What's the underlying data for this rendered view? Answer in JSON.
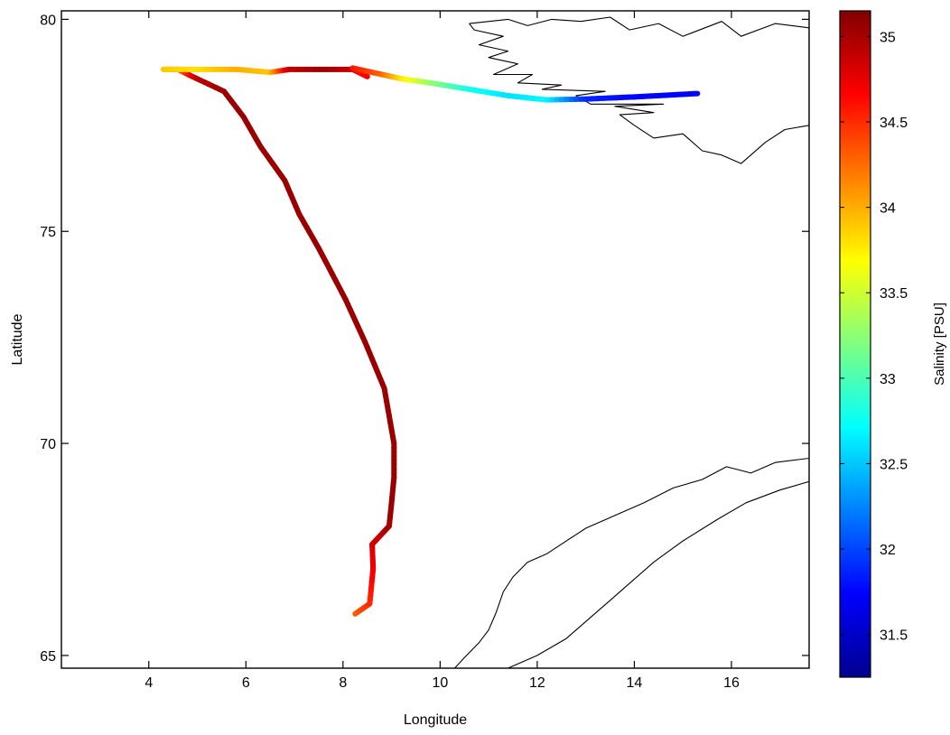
{
  "chart_data": {
    "type": "scatter",
    "xlabel": "Longitude",
    "ylabel": "Latitude",
    "xlim": [
      2.2,
      17.6
    ],
    "ylim": [
      64.7,
      80.2
    ],
    "xticks": [
      4,
      6,
      8,
      10,
      12,
      14,
      16
    ],
    "yticks": [
      65,
      70,
      75,
      80
    ],
    "grid": false,
    "colorbar": {
      "label": "Salinity [PSU]",
      "range": [
        31.25,
        35.15
      ],
      "ticks": [
        31.5,
        32,
        32.5,
        33,
        33.5,
        34,
        34.5,
        35
      ],
      "colormap": "jet"
    },
    "track": [
      {
        "lon": 8.25,
        "lat": 65.98,
        "salinity": 34.3
      },
      {
        "lon": 8.55,
        "lat": 66.22,
        "salinity": 34.5
      },
      {
        "lon": 8.62,
        "lat": 67.05,
        "salinity": 34.7
      },
      {
        "lon": 8.6,
        "lat": 67.62,
        "salinity": 34.8
      },
      {
        "lon": 8.95,
        "lat": 68.05,
        "salinity": 35.0
      },
      {
        "lon": 9.0,
        "lat": 68.6,
        "salinity": 35.05
      },
      {
        "lon": 9.05,
        "lat": 69.2,
        "salinity": 35.05
      },
      {
        "lon": 9.05,
        "lat": 70.0,
        "salinity": 35.05
      },
      {
        "lon": 8.85,
        "lat": 71.3,
        "salinity": 35.05
      },
      {
        "lon": 8.45,
        "lat": 72.4,
        "salinity": 35.05
      },
      {
        "lon": 8.05,
        "lat": 73.4,
        "salinity": 35.05
      },
      {
        "lon": 7.5,
        "lat": 74.6,
        "salinity": 35.05
      },
      {
        "lon": 7.1,
        "lat": 75.4,
        "salinity": 35.05
      },
      {
        "lon": 6.8,
        "lat": 76.2,
        "salinity": 35.05
      },
      {
        "lon": 6.3,
        "lat": 77.0,
        "salinity": 35.05
      },
      {
        "lon": 5.95,
        "lat": 77.7,
        "salinity": 35.05
      },
      {
        "lon": 5.55,
        "lat": 78.3,
        "salinity": 35.05
      },
      {
        "lon": 4.9,
        "lat": 78.65,
        "salinity": 34.9
      },
      {
        "lon": 4.6,
        "lat": 78.82,
        "salinity": 34.3
      },
      {
        "lon": 4.3,
        "lat": 78.82,
        "salinity": 33.9
      },
      {
        "lon": 5.0,
        "lat": 78.82,
        "salinity": 33.8
      },
      {
        "lon": 5.8,
        "lat": 78.82,
        "salinity": 34.0
      },
      {
        "lon": 6.5,
        "lat": 78.75,
        "salinity": 33.9
      },
      {
        "lon": 6.9,
        "lat": 78.82,
        "salinity": 34.9
      },
      {
        "lon": 7.6,
        "lat": 78.82,
        "salinity": 35.05
      },
      {
        "lon": 8.2,
        "lat": 78.82,
        "salinity": 34.9
      },
      {
        "lon": 8.5,
        "lat": 78.65,
        "salinity": 34.7
      },
      {
        "lon": 8.2,
        "lat": 78.85,
        "salinity": 34.6
      },
      {
        "lon": 8.8,
        "lat": 78.7,
        "salinity": 34.3
      },
      {
        "lon": 9.2,
        "lat": 78.6,
        "salinity": 33.8
      },
      {
        "lon": 9.8,
        "lat": 78.5,
        "salinity": 33.3
      },
      {
        "lon": 10.6,
        "lat": 78.35,
        "salinity": 32.8
      },
      {
        "lon": 11.4,
        "lat": 78.2,
        "salinity": 32.6
      },
      {
        "lon": 12.2,
        "lat": 78.1,
        "salinity": 32.7
      },
      {
        "lon": 13.0,
        "lat": 78.12,
        "salinity": 31.9
      },
      {
        "lon": 14.0,
        "lat": 78.17,
        "salinity": 31.75
      },
      {
        "lon": 15.3,
        "lat": 78.25,
        "salinity": 31.75
      }
    ],
    "coastlines": [
      {
        "name": "Svalbard",
        "points": [
          [
            10.6,
            79.9
          ],
          [
            11.4,
            80.0
          ],
          [
            11.8,
            79.85
          ],
          [
            12.3,
            80.0
          ],
          [
            12.9,
            79.95
          ],
          [
            13.5,
            80.05
          ],
          [
            13.9,
            79.75
          ],
          [
            14.5,
            79.9
          ],
          [
            15.0,
            79.6
          ],
          [
            15.8,
            79.95
          ],
          [
            16.2,
            79.6
          ],
          [
            16.9,
            79.9
          ],
          [
            17.6,
            79.8
          ],
          [
            17.6,
            77.5
          ],
          [
            17.1,
            77.4
          ],
          [
            16.7,
            77.1
          ],
          [
            16.2,
            76.6
          ],
          [
            15.8,
            76.8
          ],
          [
            15.4,
            76.9
          ],
          [
            15.0,
            77.3
          ],
          [
            14.4,
            77.2
          ],
          [
            14.0,
            77.5
          ],
          [
            13.7,
            77.75
          ],
          [
            14.4,
            77.8
          ],
          [
            13.6,
            77.95
          ],
          [
            14.6,
            78.0
          ],
          [
            13.1,
            78.0
          ],
          [
            12.8,
            78.2
          ],
          [
            13.4,
            78.3
          ],
          [
            12.1,
            78.35
          ],
          [
            12.5,
            78.45
          ],
          [
            11.6,
            78.5
          ],
          [
            11.9,
            78.7
          ],
          [
            11.1,
            78.7
          ],
          [
            11.6,
            78.95
          ],
          [
            11.0,
            79.1
          ],
          [
            11.4,
            79.25
          ],
          [
            10.8,
            79.4
          ],
          [
            11.3,
            79.6
          ],
          [
            10.7,
            79.75
          ],
          [
            10.6,
            79.9
          ]
        ]
      },
      {
        "name": "Norway",
        "points": [
          [
            17.6,
            69.65
          ],
          [
            16.9,
            69.55
          ],
          [
            16.4,
            69.3
          ],
          [
            15.9,
            69.45
          ],
          [
            15.4,
            69.15
          ],
          [
            14.8,
            68.95
          ],
          [
            14.2,
            68.6
          ],
          [
            13.6,
            68.3
          ],
          [
            13.0,
            68.0
          ],
          [
            12.6,
            67.7
          ],
          [
            12.2,
            67.4
          ],
          [
            11.8,
            67.2
          ],
          [
            11.5,
            66.85
          ],
          [
            11.3,
            66.5
          ],
          [
            11.15,
            66.0
          ],
          [
            11.0,
            65.6
          ],
          [
            10.8,
            65.3
          ],
          [
            10.5,
            64.95
          ],
          [
            10.3,
            64.7
          ],
          [
            11.4,
            64.7
          ],
          [
            12.0,
            65.0
          ],
          [
            12.6,
            65.4
          ],
          [
            13.0,
            65.8
          ],
          [
            13.5,
            66.3
          ],
          [
            13.9,
            66.7
          ],
          [
            14.4,
            67.2
          ],
          [
            15.0,
            67.7
          ],
          [
            15.7,
            68.2
          ],
          [
            16.3,
            68.6
          ],
          [
            17.0,
            68.9
          ],
          [
            17.6,
            69.1
          ]
        ]
      }
    ]
  }
}
